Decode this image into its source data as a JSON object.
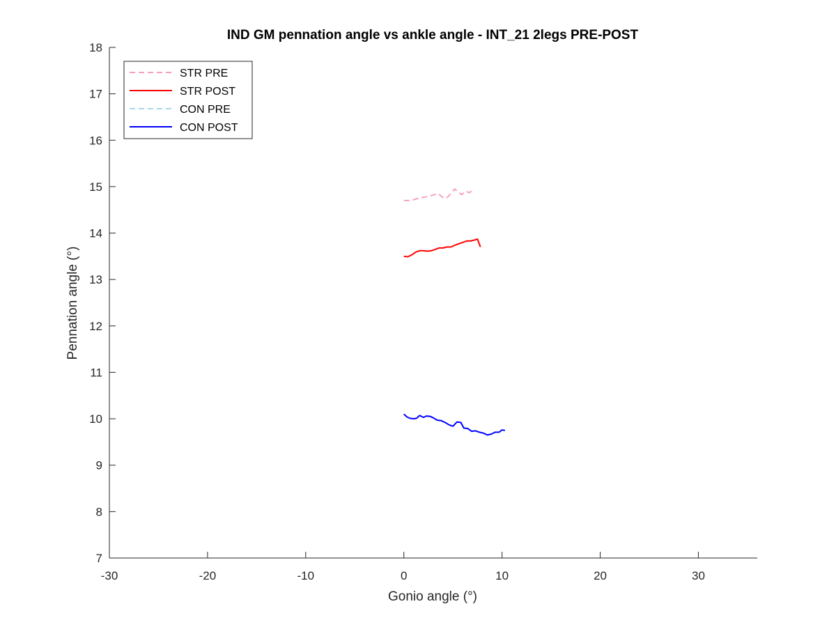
{
  "chart_data": {
    "type": "line",
    "title": "IND GM pennation angle vs ankle angle - INT_21 2legs PRE-POST",
    "xlabel": "Gonio angle (°)",
    "ylabel": "Pennation angle (°)",
    "xlim": [
      -30,
      36
    ],
    "ylim": [
      7,
      18
    ],
    "xticks": [
      -30,
      -20,
      -10,
      0,
      10,
      20,
      30
    ],
    "yticks": [
      7,
      8,
      9,
      10,
      11,
      12,
      13,
      14,
      15,
      16,
      17,
      18
    ],
    "grid": false,
    "legend_location": "top-left",
    "series": [
      {
        "name": "STR PRE",
        "color": "#f7a1b9",
        "dash": "dashed",
        "x": [
          0,
          0.5,
          1.0,
          1.5,
          2.0,
          2.5,
          3.0,
          3.5,
          4.0,
          4.4,
          4.8,
          5.2,
          5.5,
          5.9,
          6.3,
          6.7,
          7.0,
          7.2
        ],
        "y": [
          14.7,
          14.7,
          14.72,
          14.75,
          14.77,
          14.79,
          14.82,
          14.85,
          14.76,
          14.76,
          14.86,
          14.95,
          14.88,
          14.83,
          14.9,
          14.87,
          14.93,
          14.92
        ]
      },
      {
        "name": "STR POST",
        "color": "#ff0000",
        "dash": "solid",
        "x": [
          0,
          0.4,
          0.8,
          1.2,
          1.6,
          2.0,
          2.4,
          2.8,
          3.2,
          3.6,
          4.0,
          4.4,
          4.8,
          5.2,
          5.6,
          6.0,
          6.4,
          6.8,
          7.2,
          7.5,
          7.8
        ],
        "y": [
          13.5,
          13.49,
          13.53,
          13.59,
          13.62,
          13.62,
          13.61,
          13.62,
          13.65,
          13.68,
          13.68,
          13.7,
          13.7,
          13.74,
          13.77,
          13.8,
          13.83,
          13.83,
          13.85,
          13.87,
          13.7
        ]
      },
      {
        "name": "CON PRE",
        "color": "#a8d8ea",
        "dash": "dashed",
        "x": [],
        "y": []
      },
      {
        "name": "CON POST",
        "color": "#0000ff",
        "dash": "solid",
        "x": [
          0,
          0.3,
          0.6,
          1.0,
          1.3,
          1.6,
          2.0,
          2.3,
          2.7,
          3.0,
          3.4,
          3.8,
          4.2,
          4.6,
          5.0,
          5.4,
          5.8,
          6.1,
          6.5,
          6.9,
          7.3,
          7.7,
          8.1,
          8.5,
          8.9,
          9.3,
          9.7,
          10.0,
          10.3
        ],
        "y": [
          10.1,
          10.04,
          10.01,
          10.0,
          10.01,
          10.07,
          10.03,
          10.06,
          10.05,
          10.02,
          9.97,
          9.96,
          9.92,
          9.87,
          9.84,
          9.93,
          9.92,
          9.8,
          9.79,
          9.73,
          9.74,
          9.71,
          9.69,
          9.65,
          9.67,
          9.71,
          9.71,
          9.76,
          9.75
        ]
      }
    ]
  }
}
